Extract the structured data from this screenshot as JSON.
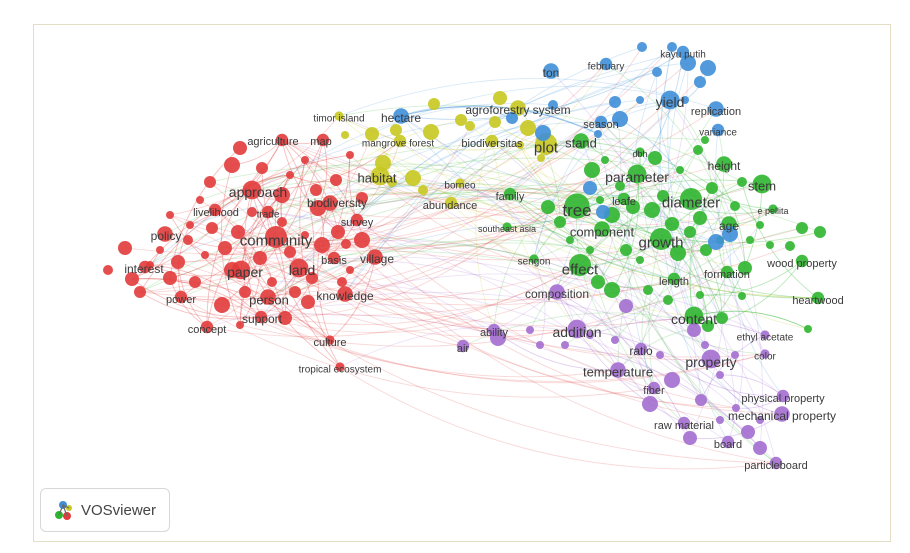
{
  "app": {
    "name": "VOSviewer",
    "logo": "vosviewer-logo-icon"
  },
  "network": {
    "type": "keyword co-occurrence map",
    "clusters": [
      {
        "id": "red",
        "color": "#e23b3b"
      },
      {
        "id": "green",
        "color": "#2fb52f"
      },
      {
        "id": "blue",
        "color": "#3f8fd8"
      },
      {
        "id": "yellow",
        "color": "#c8c820"
      },
      {
        "id": "purple",
        "color": "#a36ed0"
      }
    ],
    "keywords": [
      {
        "label": "approach",
        "cluster": "red",
        "weight": 4
      },
      {
        "label": "agriculture",
        "cluster": "red",
        "weight": 2
      },
      {
        "label": "map",
        "cluster": "red",
        "weight": 2
      },
      {
        "label": "livelihood",
        "cluster": "red",
        "weight": 2
      },
      {
        "label": "trade",
        "cluster": "red",
        "weight": 2
      },
      {
        "label": "biodiversity",
        "cluster": "red",
        "weight": 3
      },
      {
        "label": "policy",
        "cluster": "red",
        "weight": 3
      },
      {
        "label": "community",
        "cluster": "red",
        "weight": 5
      },
      {
        "label": "survey",
        "cluster": "red",
        "weight": 2
      },
      {
        "label": "interest",
        "cluster": "red",
        "weight": 2
      },
      {
        "label": "paper",
        "cluster": "red",
        "weight": 4
      },
      {
        "label": "land",
        "cluster": "red",
        "weight": 4
      },
      {
        "label": "basis",
        "cluster": "red",
        "weight": 2
      },
      {
        "label": "village",
        "cluster": "red",
        "weight": 3
      },
      {
        "label": "power",
        "cluster": "red",
        "weight": 2
      },
      {
        "label": "person",
        "cluster": "red",
        "weight": 3
      },
      {
        "label": "knowledge",
        "cluster": "red",
        "weight": 3
      },
      {
        "label": "concept",
        "cluster": "red",
        "weight": 2
      },
      {
        "label": "support",
        "cluster": "red",
        "weight": 2
      },
      {
        "label": "culture",
        "cluster": "red",
        "weight": 1
      },
      {
        "label": "tropical ecosystem",
        "cluster": "red",
        "weight": 1
      },
      {
        "label": "timor island",
        "cluster": "yellow",
        "weight": 1
      },
      {
        "label": "mangrove forest",
        "cluster": "yellow",
        "weight": 2
      },
      {
        "label": "agroforestry system",
        "cluster": "yellow",
        "weight": 3
      },
      {
        "label": "habitat",
        "cluster": "yellow",
        "weight": 4
      },
      {
        "label": "biodiversitas",
        "cluster": "yellow",
        "weight": 2
      },
      {
        "label": "borneo",
        "cluster": "yellow",
        "weight": 1
      },
      {
        "label": "abundance",
        "cluster": "yellow",
        "weight": 2
      },
      {
        "label": "plot",
        "cluster": "yellow",
        "weight": 5
      },
      {
        "label": "hectare",
        "cluster": "blue",
        "weight": 3
      },
      {
        "label": "ton",
        "cluster": "blue",
        "weight": 3
      },
      {
        "label": "february",
        "cluster": "blue",
        "weight": 2
      },
      {
        "label": "kayu putih",
        "cluster": "blue",
        "weight": 2
      },
      {
        "label": "yield",
        "cluster": "blue",
        "weight": 4
      },
      {
        "label": "replication",
        "cluster": "blue",
        "weight": 3
      },
      {
        "label": "season",
        "cluster": "blue",
        "weight": 2
      },
      {
        "label": "variance",
        "cluster": "blue",
        "weight": 2
      },
      {
        "label": "stand",
        "cluster": "green",
        "weight": 3
      },
      {
        "label": "dbh",
        "cluster": "green",
        "weight": 1
      },
      {
        "label": "height",
        "cluster": "green",
        "weight": 3
      },
      {
        "label": "parameter",
        "cluster": "green",
        "weight": 4
      },
      {
        "label": "family",
        "cluster": "green",
        "weight": 2
      },
      {
        "label": "tree",
        "cluster": "green",
        "weight": 6
      },
      {
        "label": "leafe",
        "cluster": "green",
        "weight": 2
      },
      {
        "label": "diameter",
        "cluster": "green",
        "weight": 5
      },
      {
        "label": "stem",
        "cluster": "green",
        "weight": 4
      },
      {
        "label": "e pellita",
        "cluster": "green",
        "weight": 1
      },
      {
        "label": "southeast asia",
        "cluster": "green",
        "weight": 1
      },
      {
        "label": "component",
        "cluster": "green",
        "weight": 3
      },
      {
        "label": "growth",
        "cluster": "green",
        "weight": 5
      },
      {
        "label": "age",
        "cluster": "green",
        "weight": 3
      },
      {
        "label": "sengon",
        "cluster": "green",
        "weight": 1
      },
      {
        "label": "effect",
        "cluster": "green",
        "weight": 5
      },
      {
        "label": "wood property",
        "cluster": "green",
        "weight": 2
      },
      {
        "label": "length",
        "cluster": "green",
        "weight": 2
      },
      {
        "label": "formation",
        "cluster": "green",
        "weight": 2
      },
      {
        "label": "heartwood",
        "cluster": "green",
        "weight": 2
      },
      {
        "label": "composition",
        "cluster": "purple",
        "weight": 3
      },
      {
        "label": "content",
        "cluster": "green",
        "weight": 4
      },
      {
        "label": "ability",
        "cluster": "purple",
        "weight": 2
      },
      {
        "label": "addition",
        "cluster": "purple",
        "weight": 4
      },
      {
        "label": "ethyl acetate",
        "cluster": "purple",
        "weight": 1
      },
      {
        "label": "air",
        "cluster": "purple",
        "weight": 2
      },
      {
        "label": "ratio",
        "cluster": "purple",
        "weight": 2
      },
      {
        "label": "color",
        "cluster": "purple",
        "weight": 1
      },
      {
        "label": "property",
        "cluster": "purple",
        "weight": 4
      },
      {
        "label": "temperature",
        "cluster": "purple",
        "weight": 3
      },
      {
        "label": "fiber",
        "cluster": "purple",
        "weight": 2
      },
      {
        "label": "physical property",
        "cluster": "purple",
        "weight": 2
      },
      {
        "label": "mechanical property",
        "cluster": "purple",
        "weight": 3
      },
      {
        "label": "raw material",
        "cluster": "purple",
        "weight": 2
      },
      {
        "label": "board",
        "cluster": "purple",
        "weight": 2
      },
      {
        "label": "particleboard",
        "cluster": "purple",
        "weight": 2
      }
    ]
  }
}
